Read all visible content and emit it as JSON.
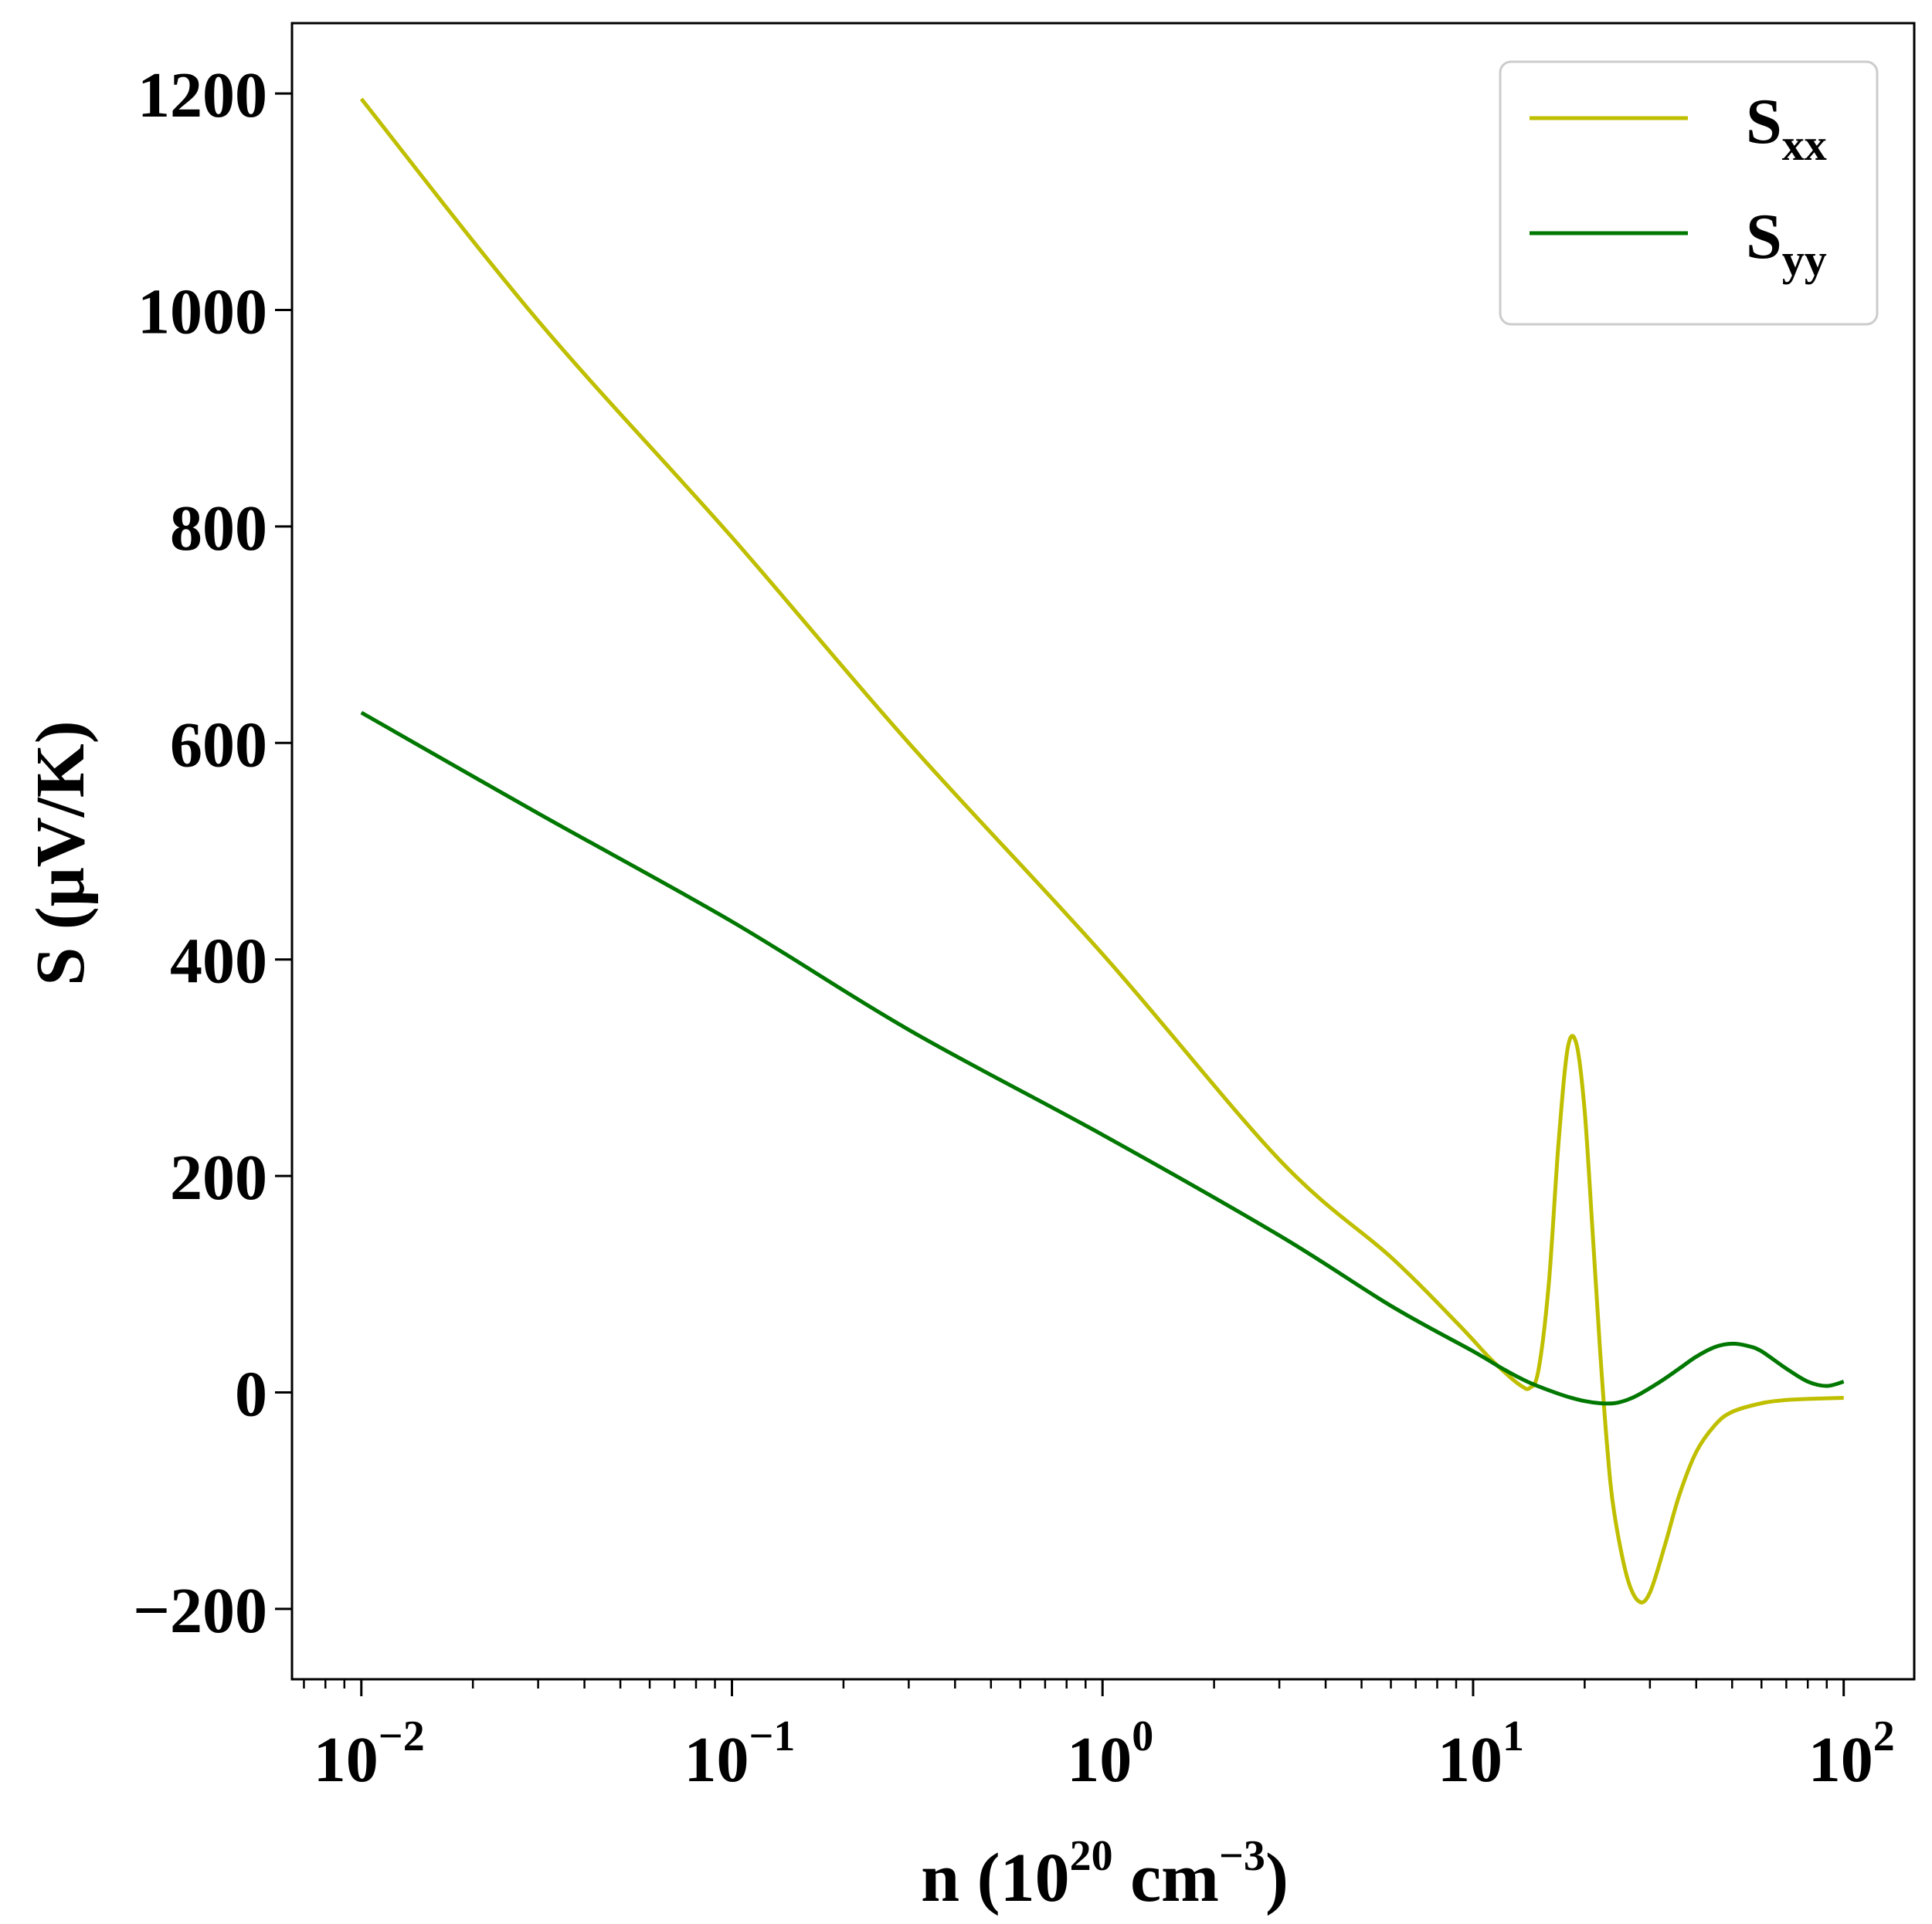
{
  "chart_data": {
    "type": "line",
    "title": "",
    "xlabel": {
      "main": "n (10",
      "exp1": "20",
      "mid": " cm",
      "exp2": "−3",
      "end": ")"
    },
    "ylabel": "S (μV/K)",
    "x_scale": "log",
    "xlim": [
      0.0065,
      155
    ],
    "ylim": [
      -265,
      1265
    ],
    "x_ticks": [
      {
        "value": 0.01,
        "base": "10",
        "exp": "−2"
      },
      {
        "value": 0.1,
        "base": "10",
        "exp": "−1"
      },
      {
        "value": 1,
        "base": "10",
        "exp": "0"
      },
      {
        "value": 10,
        "base": "10",
        "exp": "1"
      },
      {
        "value": 100,
        "base": "10",
        "exp": "2"
      }
    ],
    "y_ticks": [
      {
        "value": -200,
        "label": "−200"
      },
      {
        "value": 0,
        "label": "0"
      },
      {
        "value": 200,
        "label": "200"
      },
      {
        "value": 400,
        "label": "400"
      },
      {
        "value": 600,
        "label": "600"
      },
      {
        "value": 800,
        "label": "800"
      },
      {
        "value": 1000,
        "label": "1000"
      },
      {
        "value": 1200,
        "label": "1200"
      }
    ],
    "grid": false,
    "legend_position": "top-right",
    "series": [
      {
        "name": "S",
        "sub": "xx",
        "color": "#bfbf00",
        "x": [
          0.01,
          0.03,
          0.1,
          0.3,
          1,
          3,
          6,
          9,
          11,
          12.5,
          13.5,
          14.2,
          15,
          16,
          17,
          18,
          19,
          20,
          21,
          22,
          23,
          24,
          26,
          28,
          30,
          33,
          36,
          40,
          45,
          50,
          60,
          70,
          80,
          100
        ],
        "y": [
          1195,
          990,
          790,
          600,
          405,
          215,
          125,
          65,
          33,
          15,
          6,
          4,
          20,
          100,
          230,
          318,
          322,
          260,
          150,
          40,
          -50,
          -110,
          -170,
          -193,
          -185,
          -140,
          -95,
          -55,
          -30,
          -18,
          -10,
          -7,
          -6,
          -5
        ]
      },
      {
        "name": "S",
        "sub": "yy",
        "color": "#007800",
        "x": [
          0.01,
          0.03,
          0.1,
          0.3,
          1,
          3,
          6,
          10,
          12,
          14,
          16,
          18,
          20,
          22,
          24,
          26,
          28,
          32,
          36,
          40,
          45,
          50,
          55,
          60,
          70,
          80,
          90,
          100
        ],
        "y": [
          628,
          535,
          435,
          335,
          238,
          145,
          80,
          38,
          22,
          10,
          2,
          -4,
          -8,
          -10,
          -10,
          -7,
          -2,
          10,
          22,
          33,
          42,
          45,
          43,
          38,
          22,
          10,
          6,
          10
        ]
      }
    ]
  }
}
